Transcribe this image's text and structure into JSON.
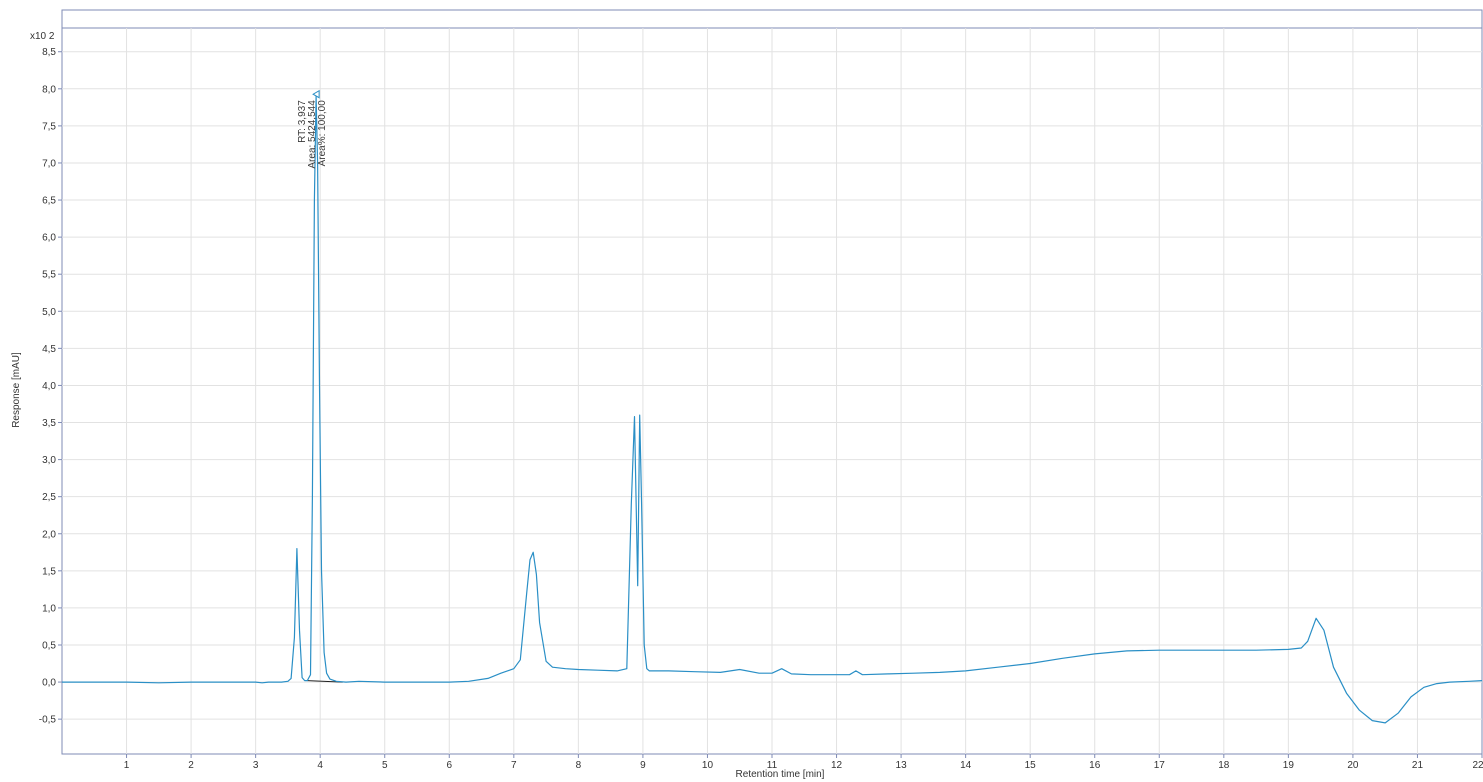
{
  "chart_data": {
    "type": "line",
    "xlabel": "Retention time [min]",
    "ylabel": "Response [mAU]",
    "y_multiplier_label": "x10 2",
    "xlim": [
      0,
      22
    ],
    "ylim": [
      -0.97,
      8.82
    ],
    "x_ticks": [
      "1",
      "2",
      "3",
      "4",
      "5",
      "6",
      "7",
      "8",
      "9",
      "10",
      "11",
      "12",
      "13",
      "14",
      "15",
      "16",
      "17",
      "18",
      "19",
      "20",
      "21",
      "22"
    ],
    "y_ticks": [
      "-0,5",
      "0,0",
      "0,5",
      "1,0",
      "1,5",
      "2,0",
      "2,5",
      "3,0",
      "3,5",
      "4,0",
      "4,5",
      "5,0",
      "5,5",
      "6,0",
      "6,5",
      "7,0",
      "7,5",
      "8,0",
      "8,5"
    ],
    "grid": true,
    "series": [
      {
        "color": "#2a8fc6",
        "x": [
          0,
          0.5,
          1,
          1.5,
          2,
          2.5,
          3,
          3.1,
          3.2,
          3.4,
          3.5,
          3.55,
          3.6,
          3.64,
          3.68,
          3.72,
          3.76,
          3.8,
          3.85,
          3.88,
          3.91,
          3.937,
          3.96,
          3.99,
          4.02,
          4.06,
          4.1,
          4.15,
          4.25,
          4.4,
          4.6,
          5,
          5.5,
          6,
          6.3,
          6.6,
          6.8,
          7.0,
          7.1,
          7.2,
          7.25,
          7.3,
          7.35,
          7.4,
          7.5,
          7.6,
          7.8,
          8.0,
          8.3,
          8.6,
          8.75,
          8.82,
          8.87,
          8.92,
          8.95,
          8.98,
          9.02,
          9.06,
          9.1,
          9.2,
          9.4,
          9.8,
          10.2,
          10.5,
          10.8,
          11.0,
          11.15,
          11.3,
          11.6,
          12.0,
          12.2,
          12.3,
          12.4,
          12.8,
          13.2,
          13.6,
          14.0,
          14.5,
          15.0,
          15.5,
          16.0,
          16.5,
          17.0,
          17.5,
          18.0,
          18.5,
          19.0,
          19.2,
          19.3,
          19.43,
          19.55,
          19.7,
          19.9,
          20.1,
          20.3,
          20.5,
          20.7,
          20.9,
          21.1,
          21.3,
          21.5,
          21.8,
          22.0
        ],
        "y": [
          0.0,
          0.0,
          0.0,
          -0.01,
          0.0,
          0.0,
          0.0,
          -0.01,
          0.0,
          0.0,
          0.01,
          0.05,
          0.6,
          1.8,
          0.7,
          0.06,
          0.02,
          0.02,
          0.1,
          2.5,
          6.5,
          7.9,
          7.0,
          4.0,
          1.5,
          0.4,
          0.12,
          0.04,
          0.01,
          0.0,
          0.01,
          0.0,
          0.0,
          0.0,
          0.01,
          0.05,
          0.12,
          0.18,
          0.3,
          1.2,
          1.65,
          1.75,
          1.45,
          0.8,
          0.28,
          0.2,
          0.18,
          0.17,
          0.16,
          0.15,
          0.18,
          2.4,
          3.58,
          1.3,
          3.6,
          2.4,
          0.5,
          0.18,
          0.15,
          0.15,
          0.15,
          0.14,
          0.13,
          0.17,
          0.12,
          0.12,
          0.18,
          0.11,
          0.1,
          0.1,
          0.1,
          0.15,
          0.1,
          0.11,
          0.12,
          0.13,
          0.15,
          0.2,
          0.25,
          0.32,
          0.38,
          0.42,
          0.43,
          0.43,
          0.43,
          0.43,
          0.44,
          0.46,
          0.55,
          0.86,
          0.7,
          0.2,
          -0.15,
          -0.38,
          -0.52,
          -0.55,
          -0.42,
          -0.2,
          -0.07,
          -0.02,
          0.0,
          0.01,
          0.02
        ]
      }
    ],
    "annotations": [
      {
        "x": 3.937,
        "y": 7.9,
        "lines": [
          "RT: 3,937",
          "Area: 5424,544",
          "Area%: 100,00"
        ]
      }
    ]
  }
}
